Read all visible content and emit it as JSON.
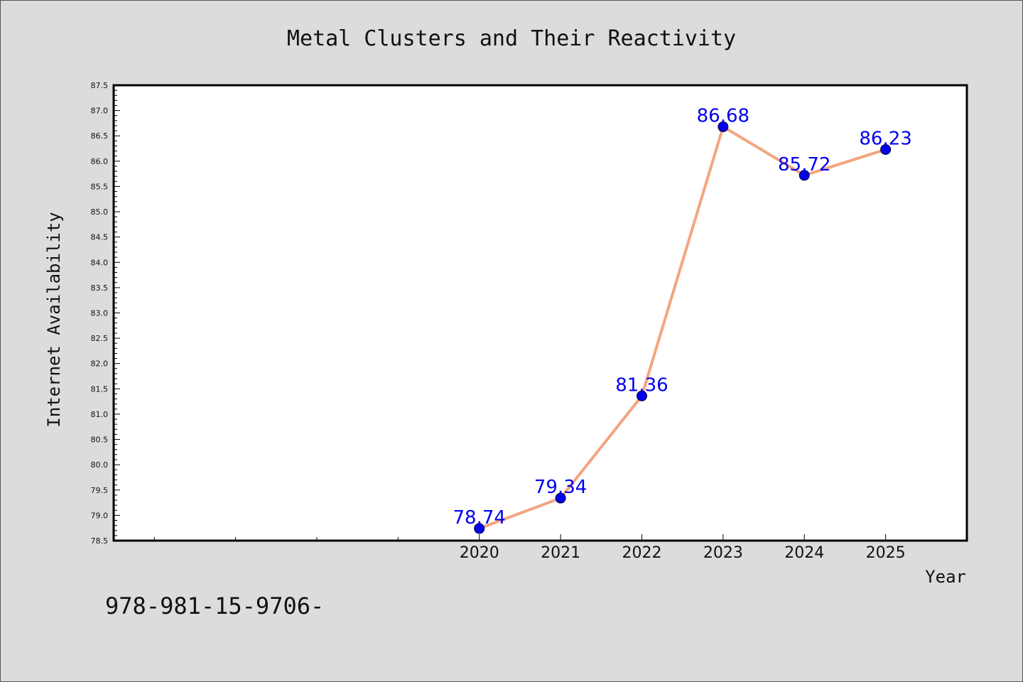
{
  "chart_data": {
    "type": "line",
    "title": "Metal Clusters and Their Reactivity",
    "xlabel": "Year",
    "ylabel": "Internet Availability",
    "categories": [
      "2020",
      "2021",
      "2022",
      "2023",
      "2024",
      "2025"
    ],
    "series": [
      {
        "values": [
          78.74,
          79.34,
          81.36,
          86.68,
          85.72,
          86.23
        ]
      }
    ],
    "data_labels": [
      "78.74",
      "79.34",
      "81.36",
      "86.68",
      "85.72",
      "86.23"
    ],
    "ylim": [
      78.5,
      87.5
    ],
    "yticks": [
      "78.5",
      "79.0",
      "79.5",
      "80.0",
      "80.5",
      "81.0",
      "81.5",
      "82.0",
      "82.5",
      "83.0",
      "83.5",
      "84.0",
      "84.5",
      "85.0",
      "85.5",
      "86.0",
      "86.5",
      "87.0",
      "87.5"
    ],
    "xlim": [
      2015.5,
      2026.0
    ],
    "grid": false,
    "colors": {
      "line": "#f4a582",
      "marker": "#0000ee",
      "label": "#0000ee",
      "background": "#dcdcdc",
      "plot_background": "#ffffff"
    }
  },
  "footnote": "978-981-15-9706-"
}
